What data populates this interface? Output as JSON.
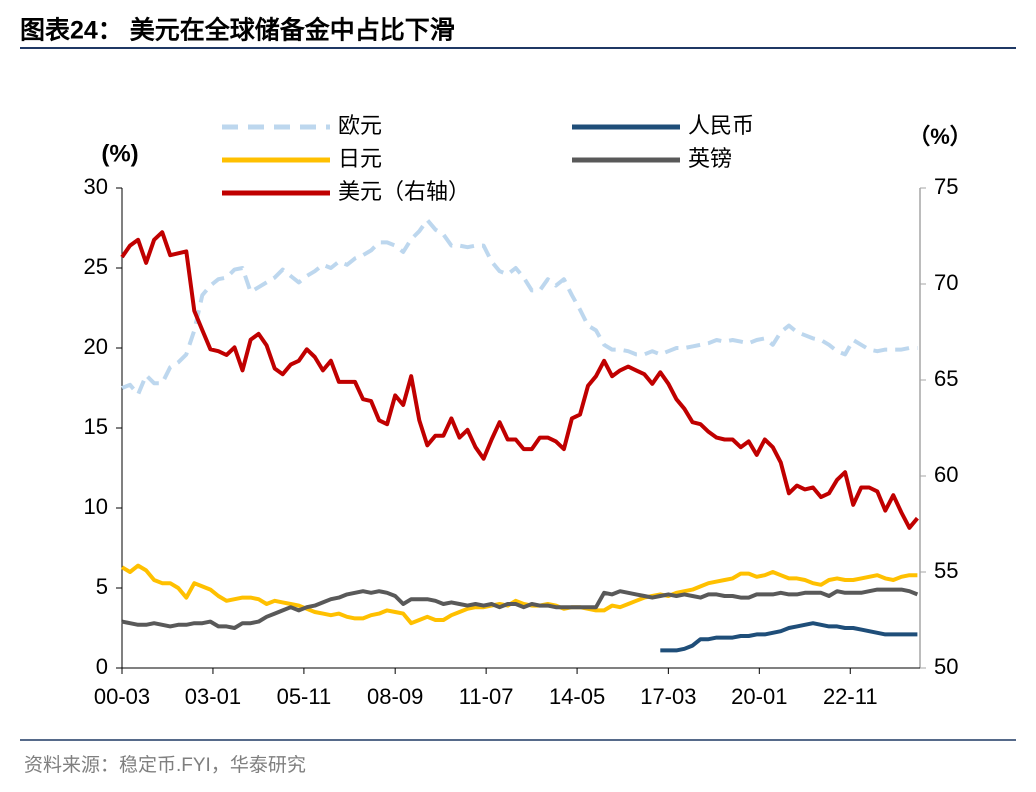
{
  "chart_data": {
    "type": "line",
    "title": "图表24：  美元在全球储备金中占比下滑",
    "source": "资料来源：稳定币.FYI，华泰研究",
    "y_label": "(%)",
    "y2_label": "（%）",
    "xlim": [
      2000.17,
      2025.0
    ],
    "xticks": [
      {
        "value": 2000.17,
        "label": "00-03"
      },
      {
        "value": 2003.0,
        "label": "03-01"
      },
      {
        "value": 2005.83,
        "label": "05-11"
      },
      {
        "value": 2008.67,
        "label": "08-09"
      },
      {
        "value": 2011.5,
        "label": "11-07"
      },
      {
        "value": 2014.33,
        "label": "14-05"
      },
      {
        "value": 2017.17,
        "label": "17-03"
      },
      {
        "value": 2020.0,
        "label": "20-01"
      },
      {
        "value": 2022.83,
        "label": "22-11"
      }
    ],
    "ylim": [
      0,
      30
    ],
    "yticks": [
      0,
      5,
      10,
      15,
      20,
      25,
      30
    ],
    "y2lim": [
      50,
      75
    ],
    "y2ticks": [
      50,
      55,
      60,
      65,
      70,
      75
    ],
    "x": [
      2000.17,
      2000.42,
      2000.67,
      2000.92,
      2001.17,
      2001.42,
      2001.67,
      2001.92,
      2002.17,
      2002.42,
      2002.67,
      2002.92,
      2003.17,
      2003.42,
      2003.67,
      2003.92,
      2004.17,
      2004.42,
      2004.67,
      2004.92,
      2005.17,
      2005.42,
      2005.67,
      2005.92,
      2006.17,
      2006.42,
      2006.67,
      2006.92,
      2007.17,
      2007.42,
      2007.67,
      2007.92,
      2008.17,
      2008.42,
      2008.67,
      2008.92,
      2009.17,
      2009.42,
      2009.67,
      2009.92,
      2010.17,
      2010.42,
      2010.67,
      2010.92,
      2011.17,
      2011.42,
      2011.67,
      2011.92,
      2012.17,
      2012.42,
      2012.67,
      2012.92,
      2013.17,
      2013.42,
      2013.67,
      2013.92,
      2014.17,
      2014.42,
      2014.67,
      2014.92,
      2015.17,
      2015.42,
      2015.67,
      2015.92,
      2016.17,
      2016.42,
      2016.67,
      2016.92,
      2017.17,
      2017.42,
      2017.67,
      2017.92,
      2018.17,
      2018.42,
      2018.67,
      2018.92,
      2019.17,
      2019.42,
      2019.67,
      2019.92,
      2020.17,
      2020.42,
      2020.67,
      2020.92,
      2021.17,
      2021.42,
      2021.67,
      2021.92,
      2022.17,
      2022.42,
      2022.67,
      2022.92,
      2023.17,
      2023.42,
      2023.67,
      2023.92,
      2024.17,
      2024.42,
      2024.67,
      2024.92
    ],
    "series": [
      {
        "name": "欧元",
        "color": "#bdd7ee",
        "dashed": true,
        "values": [
          17.5,
          17.7,
          17.1,
          18.3,
          17.8,
          17.8,
          18.8,
          19.1,
          19.6,
          21.1,
          23.3,
          23.9,
          24.3,
          24.4,
          24.9,
          25.0,
          23.5,
          23.8,
          24.1,
          24.4,
          24.9,
          24.5,
          24.1,
          24.5,
          24.8,
          25.2,
          25.0,
          25.4,
          25.2,
          25.6,
          25.8,
          26.1,
          26.6,
          26.6,
          26.4,
          26.0,
          26.8,
          27.3,
          28.0,
          27.4,
          27.1,
          26.4,
          26.4,
          26.3,
          26.4,
          26.4,
          25.4,
          24.8,
          24.6,
          25.0,
          24.4,
          23.6,
          23.6,
          24.3,
          23.9,
          24.3,
          23.3,
          22.4,
          21.4,
          21.1,
          20.2,
          19.9,
          19.9,
          19.8,
          19.6,
          19.6,
          19.8,
          19.6,
          19.8,
          20.0,
          20.0,
          20.1,
          20.2,
          20.3,
          20.5,
          20.4,
          20.5,
          20.4,
          20.3,
          20.5,
          20.6,
          20.2,
          21.0,
          21.4,
          21.0,
          20.8,
          20.6,
          20.5,
          20.2,
          19.8,
          19.6,
          20.5,
          20.2,
          19.9,
          19.8,
          19.9,
          19.9,
          19.9,
          20.0,
          20.0
        ]
      },
      {
        "name": "日元",
        "color": "#ffc000",
        "values": [
          6.3,
          6.0,
          6.4,
          6.1,
          5.5,
          5.3,
          5.3,
          5.0,
          4.4,
          5.3,
          5.1,
          4.9,
          4.5,
          4.2,
          4.3,
          4.4,
          4.4,
          4.3,
          4.0,
          4.2,
          4.1,
          4.0,
          3.9,
          3.7,
          3.5,
          3.4,
          3.3,
          3.4,
          3.2,
          3.1,
          3.1,
          3.3,
          3.4,
          3.6,
          3.5,
          3.4,
          2.8,
          3.0,
          3.2,
          3.0,
          3.0,
          3.3,
          3.5,
          3.7,
          3.8,
          3.8,
          3.9,
          4.0,
          3.9,
          4.2,
          4.0,
          3.9,
          3.9,
          4.0,
          3.9,
          3.7,
          3.8,
          3.8,
          3.7,
          3.6,
          3.6,
          3.9,
          3.8,
          4.0,
          4.2,
          4.4,
          4.5,
          4.6,
          4.5,
          4.7,
          4.8,
          4.9,
          5.1,
          5.3,
          5.4,
          5.5,
          5.6,
          5.9,
          5.9,
          5.7,
          5.8,
          6.0,
          5.8,
          5.6,
          5.6,
          5.5,
          5.3,
          5.2,
          5.5,
          5.6,
          5.5,
          5.5,
          5.6,
          5.7,
          5.8,
          5.6,
          5.5,
          5.7,
          5.8,
          5.8
        ]
      },
      {
        "name": "美元（右轴）",
        "color": "#c00000",
        "axis": "y2",
        "values": [
          71.4,
          72.0,
          72.3,
          71.1,
          72.3,
          72.7,
          71.5,
          71.6,
          71.7,
          68.6,
          67.6,
          66.6,
          66.5,
          66.3,
          66.7,
          65.5,
          67.1,
          67.4,
          66.8,
          65.6,
          65.3,
          65.8,
          66.0,
          66.6,
          66.2,
          65.5,
          66.0,
          64.9,
          64.9,
          64.9,
          64.0,
          63.9,
          62.9,
          62.7,
          64.2,
          63.7,
          65.2,
          62.9,
          61.6,
          62.1,
          62.1,
          63.0,
          62.0,
          62.4,
          61.5,
          60.9,
          61.9,
          62.8,
          61.9,
          61.9,
          61.4,
          61.4,
          62.0,
          62.0,
          61.8,
          61.4,
          63.0,
          63.2,
          64.7,
          65.2,
          66.0,
          65.2,
          65.5,
          65.7,
          65.5,
          65.3,
          64.8,
          65.4,
          64.8,
          64.0,
          63.5,
          62.8,
          62.7,
          62.3,
          62.0,
          61.9,
          61.9,
          61.5,
          61.8,
          61.1,
          61.9,
          61.5,
          60.7,
          59.1,
          59.5,
          59.3,
          59.4,
          58.9,
          59.1,
          59.8,
          60.2,
          58.5,
          59.4,
          59.4,
          59.2,
          58.2,
          59.0,
          58.1,
          57.3,
          57.8
        ]
      },
      {
        "name": "人民币",
        "color": "#1f4e79",
        "values": [
          null,
          null,
          null,
          null,
          null,
          null,
          null,
          null,
          null,
          null,
          null,
          null,
          null,
          null,
          null,
          null,
          null,
          null,
          null,
          null,
          null,
          null,
          null,
          null,
          null,
          null,
          null,
          null,
          null,
          null,
          null,
          null,
          null,
          null,
          null,
          null,
          null,
          null,
          null,
          null,
          null,
          null,
          null,
          null,
          null,
          null,
          null,
          null,
          null,
          null,
          null,
          null,
          null,
          null,
          null,
          null,
          null,
          null,
          null,
          null,
          null,
          null,
          null,
          null,
          null,
          null,
          null,
          1.1,
          1.1,
          1.1,
          1.2,
          1.4,
          1.8,
          1.8,
          1.9,
          1.9,
          1.9,
          2.0,
          2.0,
          2.1,
          2.1,
          2.2,
          2.3,
          2.5,
          2.6,
          2.7,
          2.8,
          2.7,
          2.6,
          2.6,
          2.5,
          2.5,
          2.4,
          2.3,
          2.2,
          2.1,
          2.1,
          2.1,
          2.1,
          2.1
        ]
      },
      {
        "name": "英镑",
        "color": "#595959",
        "values": [
          2.9,
          2.8,
          2.7,
          2.7,
          2.8,
          2.7,
          2.6,
          2.7,
          2.7,
          2.8,
          2.8,
          2.9,
          2.6,
          2.6,
          2.5,
          2.8,
          2.8,
          2.9,
          3.2,
          3.4,
          3.6,
          3.8,
          3.6,
          3.8,
          3.9,
          4.1,
          4.3,
          4.4,
          4.6,
          4.7,
          4.8,
          4.7,
          4.8,
          4.7,
          4.5,
          4.0,
          4.3,
          4.3,
          4.3,
          4.2,
          4.0,
          4.1,
          4.0,
          3.9,
          4.0,
          3.9,
          4.0,
          3.8,
          4.0,
          4.0,
          3.8,
          4.0,
          3.9,
          3.9,
          3.8,
          3.8,
          3.8,
          3.8,
          3.8,
          3.8,
          4.7,
          4.6,
          4.8,
          4.7,
          4.6,
          4.5,
          4.4,
          4.5,
          4.6,
          4.5,
          4.6,
          4.5,
          4.4,
          4.6,
          4.6,
          4.5,
          4.5,
          4.4,
          4.4,
          4.6,
          4.6,
          4.6,
          4.7,
          4.6,
          4.6,
          4.7,
          4.7,
          4.7,
          4.5,
          4.8,
          4.7,
          4.7,
          4.7,
          4.8,
          4.9,
          4.9,
          4.9,
          4.9,
          4.8,
          4.6
        ]
      }
    ]
  }
}
